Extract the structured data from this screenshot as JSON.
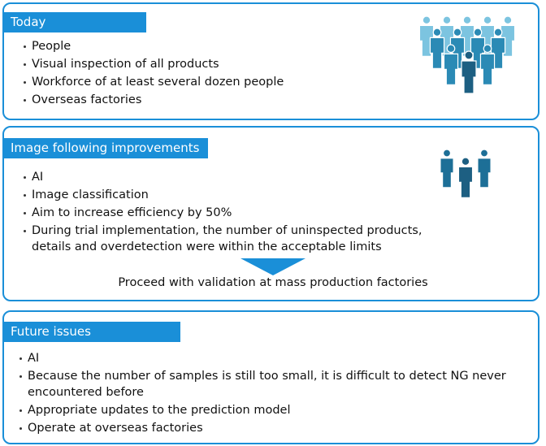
{
  "sections": [
    {
      "title": "Today",
      "items": [
        "People",
        "Visual inspection of all products",
        "Workforce of at least several dozen people",
        "Overseas factories"
      ]
    },
    {
      "title": "Image following improvements",
      "items": [
        "AI",
        "Image classification",
        "Aim to increase efficiency by 50%",
        "During trial implementation, the number of uninspected products, details and overdetection were within the acceptable limits"
      ],
      "result": "Proceed with validation at mass production factories"
    },
    {
      "title": "Future issues",
      "items": [
        "AI",
        "Because the number of samples is still too small, it is difficult to detect NG never encountered before",
        "Appropriate updates to the prediction model",
        "Operate at overseas factories"
      ]
    }
  ]
}
